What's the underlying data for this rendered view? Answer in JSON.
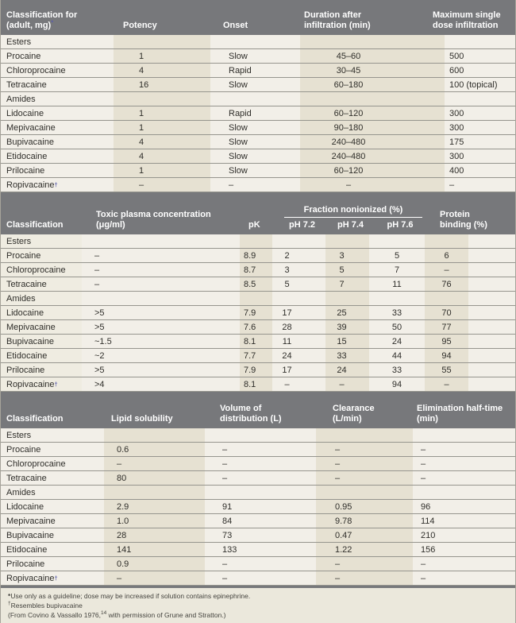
{
  "colors": {
    "header_bg": "#77787b",
    "band_light": "#f2efe8",
    "band_dark": "#e6e1d2",
    "row_line": "#96958e",
    "accent_superscript": "#5c5fa9"
  },
  "table1": {
    "header": {
      "classification_line1": "Classification for",
      "classification_line2": "(adult, mg)",
      "classification_mark": "*",
      "potency": "Potency",
      "onset": "Onset",
      "duration_line1": "Duration after",
      "duration_line2": "infiltration (min)",
      "max_line1": "Maximum single",
      "max_line2": "dose infiltration"
    },
    "rows": [
      {
        "label": "Esters",
        "section": true,
        "cells": [
          "",
          "",
          "",
          ""
        ]
      },
      {
        "label": "Procaine",
        "cells": [
          "1",
          "Slow",
          "45–60",
          "500"
        ]
      },
      {
        "label": "Chloroprocaine",
        "cells": [
          "4",
          "Rapid",
          "30–45",
          "600"
        ]
      },
      {
        "label": "Tetracaine",
        "cells": [
          "16",
          "Slow",
          "60–180",
          "100 (topical)"
        ]
      },
      {
        "label": "Amides",
        "section": true,
        "cells": [
          "",
          "",
          "",
          ""
        ]
      },
      {
        "label": "Lidocaine",
        "cells": [
          "1",
          "Rapid",
          "60–120",
          "300"
        ]
      },
      {
        "label": "Mepivacaine",
        "cells": [
          "1",
          "Slow",
          "90–180",
          "300"
        ]
      },
      {
        "label": "Bupivacaine",
        "cells": [
          "4",
          "Slow",
          "240–480",
          "175"
        ]
      },
      {
        "label": "Etidocaine",
        "cells": [
          "4",
          "Slow",
          "240–480",
          "300"
        ]
      },
      {
        "label": "Prilocaine",
        "cells": [
          "1",
          "Slow",
          "60–120",
          "400"
        ]
      },
      {
        "label": "Ropivacaine",
        "sup": "†",
        "cells": [
          "–",
          "–",
          "–",
          "–"
        ]
      }
    ]
  },
  "table2": {
    "header": {
      "classification": "Classification",
      "toxic_line1": "Toxic plasma concentration",
      "toxic_line2": "(μg/ml)",
      "pk": "pK",
      "fraction_title": "Fraction nonionized (%)",
      "ph_72": "pH 7.2",
      "ph_74": "pH 7.4",
      "ph_76": "pH 7.6",
      "protein_line1": "Protein",
      "protein_line2": "binding (%)"
    },
    "rows": [
      {
        "label": "Esters",
        "section": true,
        "cells": [
          "",
          "",
          "",
          "",
          "",
          ""
        ]
      },
      {
        "label": "Procaine",
        "cells": [
          "–",
          "8.9",
          "2",
          "3",
          "5",
          "6"
        ]
      },
      {
        "label": "Chloroprocaine",
        "cells": [
          "–",
          "8.7",
          "3",
          "5",
          "7",
          "–"
        ]
      },
      {
        "label": "Tetracaine",
        "cells": [
          "–",
          "8.5",
          "5",
          "7",
          "11",
          "76"
        ]
      },
      {
        "label": "Amides",
        "section": true,
        "cells": [
          "",
          "",
          "",
          "",
          "",
          ""
        ]
      },
      {
        "label": "Lidocaine",
        "cells": [
          ">5",
          "7.9",
          "17",
          "25",
          "33",
          "70"
        ]
      },
      {
        "label": "Mepivacaine",
        "cells": [
          ">5",
          "7.6",
          "28",
          "39",
          "50",
          "77"
        ]
      },
      {
        "label": "Bupivacaine",
        "cells": [
          "~1.5",
          "8.1",
          "11",
          "15",
          "24",
          "95"
        ]
      },
      {
        "label": "Etidocaine",
        "cells": [
          "~2",
          "7.7",
          "24",
          "33",
          "44",
          "94"
        ]
      },
      {
        "label": "Prilocaine",
        "cells": [
          ">5",
          "7.9",
          "17",
          "24",
          "33",
          "55"
        ]
      },
      {
        "label": "Ropivacaine",
        "sup": "†",
        "cells": [
          ">4",
          "8.1",
          "–",
          "–",
          "94",
          "–"
        ]
      }
    ]
  },
  "table3": {
    "header": {
      "classification": "Classification",
      "lipid": "Lipid solubility",
      "volume_line1": "Volume of",
      "volume_line2": "distribution (L)",
      "clearance_line1": "Clearance",
      "clearance_line2": "(L/min)",
      "elimination_line1": "Elimination half-time",
      "elimination_line2": "(min)"
    },
    "rows": [
      {
        "label": "Esters",
        "section": true,
        "cells": [
          "",
          "",
          "",
          ""
        ]
      },
      {
        "label": "Procaine",
        "cells": [
          "0.6",
          "–",
          "–",
          "–"
        ]
      },
      {
        "label": "Chloroprocaine",
        "cells": [
          "–",
          "–",
          "–",
          "–"
        ]
      },
      {
        "label": "Tetracaine",
        "cells": [
          "80",
          "–",
          "–",
          "–"
        ]
      },
      {
        "label": "Amides",
        "section": true,
        "cells": [
          "",
          "",
          "",
          ""
        ]
      },
      {
        "label": "Lidocaine",
        "cells": [
          "2.9",
          "91",
          "0.95",
          "96"
        ]
      },
      {
        "label": "Mepivacaine",
        "cells": [
          "1.0",
          "84",
          "9.78",
          "114"
        ]
      },
      {
        "label": "Bupivacaine",
        "cells": [
          "28",
          "73",
          "0.47",
          "210"
        ]
      },
      {
        "label": "Etidocaine",
        "cells": [
          "141",
          "133",
          "1.22",
          "156"
        ]
      },
      {
        "label": "Prilocaine",
        "cells": [
          "0.9",
          "–",
          "–",
          "–"
        ]
      },
      {
        "label": "Ropivacaine",
        "sup": "†",
        "cells": [
          "–",
          "–",
          "–",
          "–"
        ]
      }
    ]
  },
  "footnotes": {
    "note1_marker": "*",
    "note1_text": "Use only as a guideline; dose may be increased if solution contains epinephrine.",
    "note2_marker": "†",
    "note2_text": "Resembles bupivacaine",
    "note3_pre": "(From Covino & Vassallo 1976,",
    "note3_sup": "14",
    "note3_post": " with permission of Grune and Stratton.)"
  }
}
